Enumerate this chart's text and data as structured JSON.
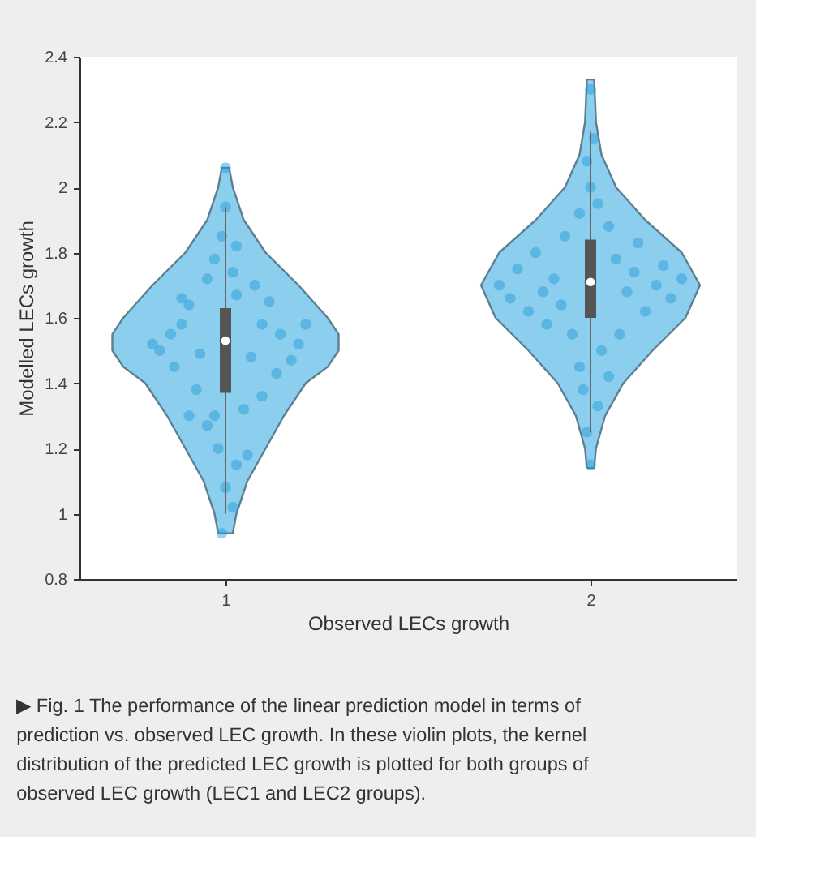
{
  "chart_data": {
    "type": "box",
    "xlabel": "Observed LECs growth",
    "ylabel": "Modelled LECs growth",
    "x": [
      1,
      2
    ],
    "boxes": [
      {
        "low": 1.0,
        "q1": 1.37,
        "median": 1.53,
        "q3": 1.63,
        "high": 1.94
      },
      {
        "low": 1.25,
        "q1": 1.6,
        "median": 1.71,
        "q3": 1.84,
        "high": 2.17
      }
    ],
    "xlim": [
      0.6,
      2.4
    ],
    "xticks": [
      1,
      2
    ],
    "ylim": [
      0.8,
      2.4
    ],
    "yticks": [
      0.8,
      1,
      1.2,
      1.4,
      1.6,
      1.8,
      2,
      2.2,
      2.4
    ],
    "grid": false,
    "series": [
      {
        "type": "area",
        "color": "#5d7f92",
        "x": [
          0.98,
          0.97,
          0.94,
          0.89,
          0.84,
          0.78,
          0.72,
          0.69,
          0.69,
          0.72,
          0.8,
          0.89,
          0.95,
          0.98,
          0.99,
          1.01,
          1.02,
          1.05,
          1.11,
          1.2,
          1.28,
          1.31,
          1.31,
          1.28,
          1.22,
          1.16,
          1.11,
          1.06,
          1.03,
          1.02,
          0.98
        ],
        "values": [
          0.94,
          1.0,
          1.1,
          1.2,
          1.3,
          1.4,
          1.45,
          1.5,
          1.55,
          1.6,
          1.7,
          1.8,
          1.9,
          2.0,
          2.06,
          2.06,
          2.0,
          1.9,
          1.8,
          1.7,
          1.6,
          1.55,
          1.5,
          1.45,
          1.4,
          1.3,
          1.2,
          1.1,
          1.0,
          0.94,
          0.94
        ]
      },
      {
        "type": "area",
        "color": "#5d7f92",
        "x": [
          1.99,
          1.985,
          1.96,
          1.91,
          1.83,
          1.74,
          1.7,
          1.75,
          1.85,
          1.93,
          1.97,
          1.985,
          1.99,
          2.01,
          2.015,
          2.03,
          2.07,
          2.15,
          2.25,
          2.3,
          2.26,
          2.17,
          2.09,
          2.04,
          2.015,
          2.01,
          1.99
        ],
        "values": [
          1.14,
          1.2,
          1.3,
          1.4,
          1.5,
          1.6,
          1.7,
          1.8,
          1.9,
          2.0,
          2.1,
          2.2,
          2.33,
          2.33,
          2.2,
          2.1,
          2.0,
          1.9,
          1.8,
          1.7,
          1.6,
          1.5,
          1.4,
          1.3,
          1.2,
          1.14,
          1.14
        ]
      },
      {
        "type": "scatter",
        "color": "#1f9ad6",
        "x": [
          0.8,
          0.82,
          0.85,
          0.88,
          0.9,
          0.93,
          0.86,
          0.95,
          0.97,
          1.03,
          1.08,
          1.12,
          1.15,
          1.2,
          1.22,
          1.18,
          1.1,
          1.05,
          0.97,
          0.92,
          0.95,
          0.98,
          1.03,
          1.06,
          1.0,
          1.02,
          0.99,
          1.0,
          1.0,
          0.99,
          1.03,
          1.02,
          0.9,
          1.1,
          1.14,
          0.88,
          1.07
        ],
        "values": [
          1.52,
          1.5,
          1.55,
          1.58,
          1.64,
          1.49,
          1.45,
          1.72,
          1.78,
          1.67,
          1.7,
          1.65,
          1.55,
          1.52,
          1.58,
          1.47,
          1.36,
          1.32,
          1.3,
          1.38,
          1.27,
          1.2,
          1.15,
          1.18,
          1.08,
          1.02,
          0.94,
          2.06,
          1.94,
          1.85,
          1.82,
          1.74,
          1.3,
          1.58,
          1.43,
          1.66,
          1.48
        ]
      },
      {
        "type": "scatter",
        "color": "#1f9ad6",
        "x": [
          1.75,
          1.78,
          1.8,
          1.83,
          1.85,
          1.88,
          1.9,
          1.93,
          1.95,
          1.97,
          2.0,
          2.02,
          2.05,
          2.07,
          2.1,
          2.12,
          2.15,
          2.18,
          2.2,
          2.22,
          2.25,
          2.08,
          2.03,
          1.97,
          2.05,
          1.98,
          2.02,
          1.99,
          2.0,
          2.0,
          2.01,
          1.99,
          1.92,
          2.13,
          1.87
        ],
        "values": [
          1.7,
          1.66,
          1.75,
          1.62,
          1.8,
          1.58,
          1.72,
          1.85,
          1.55,
          1.92,
          2.0,
          1.95,
          1.88,
          1.78,
          1.68,
          1.74,
          1.62,
          1.7,
          1.76,
          1.66,
          1.72,
          1.55,
          1.5,
          1.45,
          1.42,
          1.38,
          1.33,
          1.25,
          1.15,
          2.3,
          2.15,
          2.08,
          1.64,
          1.83,
          1.68
        ]
      }
    ],
    "annotations": [
      "▶ Fig. 1  The performance of the linear prediction model in terms of prediction vs. observed LEC growth. In these violin plots, the kernel distribution of the predicted LEC growth is plotted for both groups of observed LEC growth (LEC1 and LEC2 groups)."
    ]
  }
}
